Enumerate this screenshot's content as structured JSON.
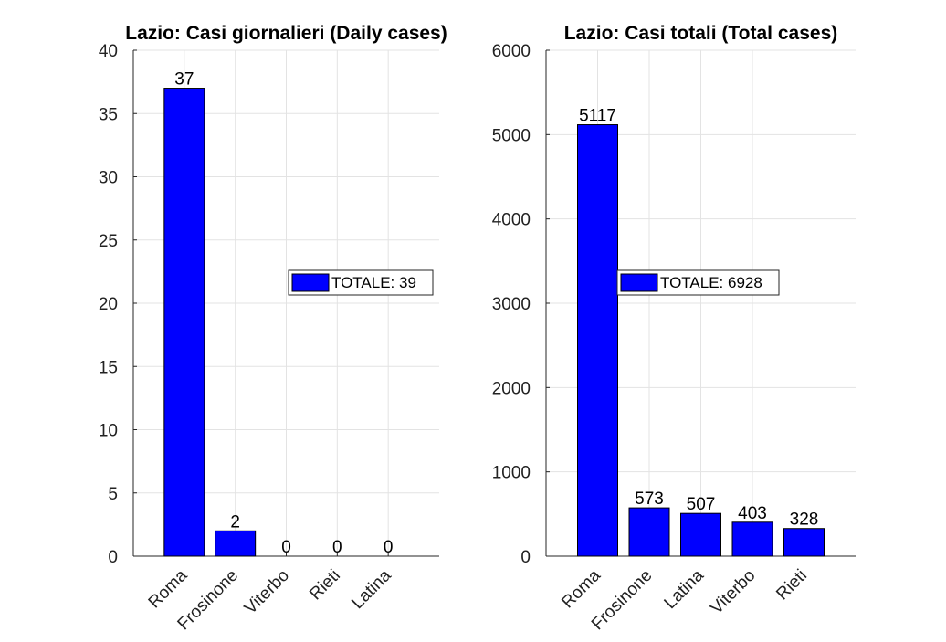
{
  "chart_data": [
    {
      "type": "bar",
      "title": "Lazio: Casi giornalieri (Daily cases)",
      "categories": [
        "Roma",
        "Frosinone",
        "Viterbo",
        "Rieti",
        "Latina"
      ],
      "values": [
        37,
        2,
        0,
        0,
        0
      ],
      "ylim": [
        0,
        40
      ],
      "yticks": [
        0,
        5,
        10,
        15,
        20,
        25,
        30,
        35,
        40
      ],
      "legend": {
        "label": "TOTALE: 39",
        "placement": "middle-right"
      },
      "bar_color": "#0000ff",
      "grid": true
    },
    {
      "type": "bar",
      "title": "Lazio: Casi totali (Total cases)",
      "categories": [
        "Roma",
        "Frosinone",
        "Latina",
        "Viterbo",
        "Rieti"
      ],
      "values": [
        5117,
        573,
        507,
        403,
        328
      ],
      "ylim": [
        0,
        6000
      ],
      "yticks": [
        0,
        1000,
        2000,
        3000,
        4000,
        5000,
        6000
      ],
      "legend": {
        "label": "TOTALE: 6928",
        "placement": "middle-left"
      },
      "bar_color": "#0000ff",
      "grid": true
    }
  ]
}
